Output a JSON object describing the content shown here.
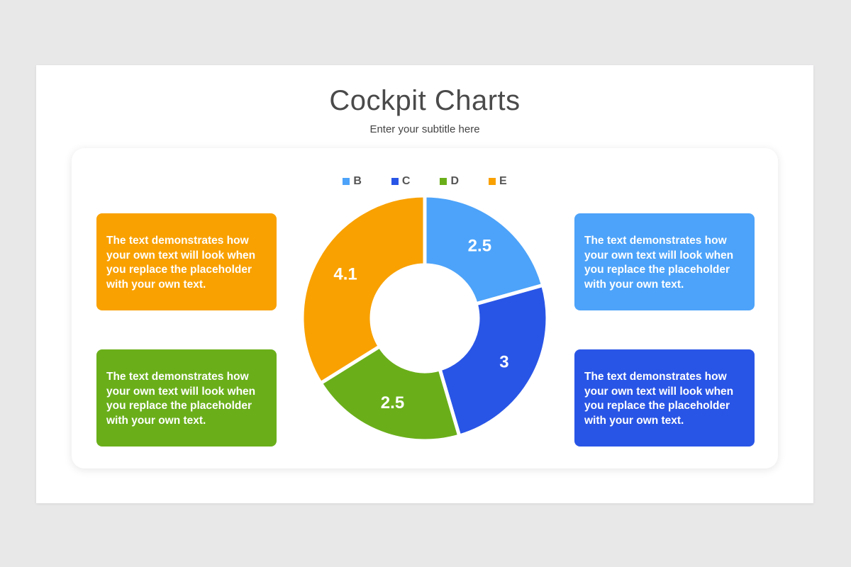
{
  "slide": {
    "title": "Cockpit Charts",
    "subtitle": "Enter your subtitle here"
  },
  "cards": {
    "top_left": {
      "text": "The text demonstrates how your own text will look when you replace the placeholder with your own text.",
      "color": "#f9a101"
    },
    "bottom_left": {
      "text": "The text demonstrates how your own text will look when you replace the placeholder with your own text.",
      "color": "#6aaf1a"
    },
    "top_right": {
      "text": "The text demonstrates how your own text will look when you replace the placeholder with your own text.",
      "color": "#4da3f9"
    },
    "bottom_right": {
      "text": "The text demonstrates how your own text will look when you replace the placeholder with your own text.",
      "color": "#2955e6"
    }
  },
  "chart_data": {
    "type": "pie",
    "donut": true,
    "title": "",
    "categories": [
      "B",
      "C",
      "D",
      "E"
    ],
    "values": [
      2.5,
      3,
      2.5,
      4.1
    ],
    "data_labels": [
      "2.5",
      "3",
      "2.5",
      "4.1"
    ],
    "colors": [
      "#4da3f9",
      "#2955e6",
      "#6aaf1a",
      "#f9a101"
    ],
    "legend": [
      "B",
      "C",
      "D",
      "E"
    ],
    "legend_position": "top"
  }
}
